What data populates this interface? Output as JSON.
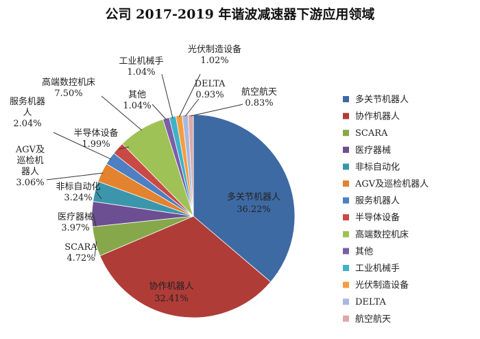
{
  "chart_data": {
    "type": "pie",
    "title": "公司 2017-2019 年谐波减速器下游应用领域",
    "series": [
      {
        "name": "多关节机器人",
        "value": 36.22,
        "label": "36.22%",
        "color": "#3e6aa4"
      },
      {
        "name": "协作机器人",
        "value": 32.41,
        "label": "32.41%",
        "color": "#b03c38"
      },
      {
        "name": "SCARA",
        "value": 4.72,
        "label": "4.72%",
        "color": "#86a84a"
      },
      {
        "name": "医疗器械",
        "value": 3.97,
        "label": "3.97%",
        "color": "#6c4f92"
      },
      {
        "name": "非标自动化",
        "value": 3.24,
        "label": "3.24%",
        "color": "#3b96ac"
      },
      {
        "name": "AGV及巡检机器人",
        "value": 3.06,
        "label": "3.06%",
        "color": "#e3822f"
      },
      {
        "name": "服务机器人",
        "value": 2.04,
        "label": "2.04%",
        "color": "#4d7fc2"
      },
      {
        "name": "半导体设备",
        "value": 1.99,
        "label": "1.99%",
        "color": "#c94a44"
      },
      {
        "name": "高端数控机床",
        "value": 7.5,
        "label": "7.50%",
        "color": "#9ec255"
      },
      {
        "name": "其他",
        "value": 1.04,
        "label": "1.04%",
        "color": "#7b5ea8"
      },
      {
        "name": "工业机械手",
        "value": 1.04,
        "label": "1.04%",
        "color": "#3fb2c8"
      },
      {
        "name": "光伏制造设备",
        "value": 1.02,
        "label": "1.02%",
        "color": "#f59c42"
      },
      {
        "name": "DELTA",
        "value": 0.93,
        "label": "0.93%",
        "color": "#a9b9dd"
      },
      {
        "name": "航空航天",
        "value": 0.83,
        "label": "0.83%",
        "color": "#dcaaa8"
      }
    ],
    "legend_position": "right",
    "start_angle": "12 o'clock",
    "direction": "clockwise"
  },
  "slice_labels": [
    {
      "lines": [
        "多关节机器人",
        "36.22%"
      ]
    },
    {
      "lines": [
        "协作机器人",
        "32.41%"
      ]
    },
    {
      "lines": [
        "SCARA",
        "4.72%"
      ]
    },
    {
      "lines": [
        "医疗器械",
        "3.97%"
      ]
    },
    {
      "lines": [
        "非标自动化",
        "3.24%"
      ]
    },
    {
      "lines": [
        "AGV及",
        "巡检机",
        "器人",
        "3.06%"
      ]
    },
    {
      "lines": [
        "服务机器",
        "人",
        "2.04%"
      ]
    },
    {
      "lines": [
        "半导体设备",
        "1.99%"
      ]
    },
    {
      "lines": [
        "高端数控机床",
        "7.50%"
      ]
    },
    {
      "lines": [
        "其他",
        "1.04%"
      ]
    },
    {
      "lines": [
        "工业机械手",
        "1.04%"
      ]
    },
    {
      "lines": [
        "光伏制造设备",
        "1.02%"
      ]
    },
    {
      "lines": [
        "DELTA",
        "0.93%"
      ]
    },
    {
      "lines": [
        "航空航天",
        "0.83%"
      ]
    }
  ]
}
